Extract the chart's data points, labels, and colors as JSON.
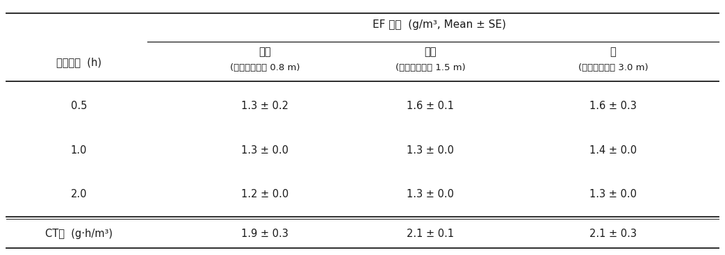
{
  "title": "EF 농도  (g/m³, Mean ± SE)",
  "col_header_row1": [
    "아래",
    "중간",
    "위"
  ],
  "col_header_row2": [
    "(지면으로부터 0.8 m)",
    "(지면으로부터 1.5 m)",
    "(지면으로부터 3.0 m)"
  ],
  "row_label": "훈증시간  (h)",
  "data_rows": [
    [
      "0.5",
      "1.3 ± 0.2",
      "1.6 ± 0.1",
      "1.6 ± 0.3"
    ],
    [
      "1.0",
      "1.3 ± 0.0",
      "1.3 ± 0.0",
      "1.4 ± 0.0"
    ],
    [
      "2.0",
      "1.2 ± 0.0",
      "1.3 ± 0.0",
      "1.3 ± 0.0"
    ]
  ],
  "ct_row_label": "CT값  (g·h/m³)",
  "ct_row_data": [
    "1.9 ± 0.3",
    "2.1 ± 0.1",
    "2.1 ± 0.3"
  ],
  "bg_color": "#ffffff",
  "text_color": "#1a1a1a",
  "font_size": 10.5,
  "small_font_size": 9.5
}
